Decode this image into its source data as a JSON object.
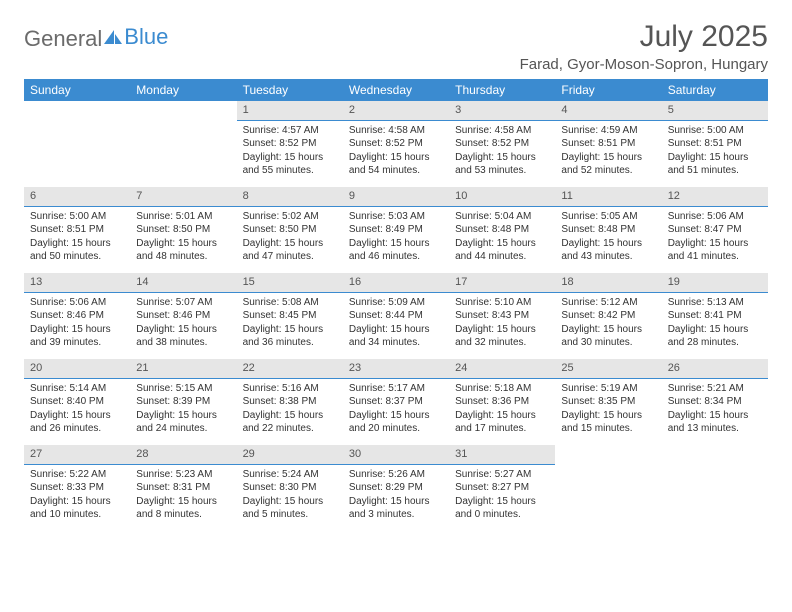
{
  "logo": {
    "text1": "General",
    "text2": "Blue"
  },
  "title": "July 2025",
  "location": "Farad, Gyor-Moson-Sopron, Hungary",
  "colors": {
    "header_bg": "#3b8bd0",
    "header_fg": "#ffffff",
    "daynum_bg": "#e6e6e6",
    "daynum_border": "#3b8bd0",
    "text": "#333333",
    "title_color": "#555555"
  },
  "weekdays": [
    "Sunday",
    "Monday",
    "Tuesday",
    "Wednesday",
    "Thursday",
    "Friday",
    "Saturday"
  ],
  "weeks": [
    [
      {
        "n": "",
        "sunrise": "",
        "sunset": "",
        "daylight": ""
      },
      {
        "n": "",
        "sunrise": "",
        "sunset": "",
        "daylight": ""
      },
      {
        "n": "1",
        "sunrise": "Sunrise: 4:57 AM",
        "sunset": "Sunset: 8:52 PM",
        "daylight": "Daylight: 15 hours and 55 minutes."
      },
      {
        "n": "2",
        "sunrise": "Sunrise: 4:58 AM",
        "sunset": "Sunset: 8:52 PM",
        "daylight": "Daylight: 15 hours and 54 minutes."
      },
      {
        "n": "3",
        "sunrise": "Sunrise: 4:58 AM",
        "sunset": "Sunset: 8:52 PM",
        "daylight": "Daylight: 15 hours and 53 minutes."
      },
      {
        "n": "4",
        "sunrise": "Sunrise: 4:59 AM",
        "sunset": "Sunset: 8:51 PM",
        "daylight": "Daylight: 15 hours and 52 minutes."
      },
      {
        "n": "5",
        "sunrise": "Sunrise: 5:00 AM",
        "sunset": "Sunset: 8:51 PM",
        "daylight": "Daylight: 15 hours and 51 minutes."
      }
    ],
    [
      {
        "n": "6",
        "sunrise": "Sunrise: 5:00 AM",
        "sunset": "Sunset: 8:51 PM",
        "daylight": "Daylight: 15 hours and 50 minutes."
      },
      {
        "n": "7",
        "sunrise": "Sunrise: 5:01 AM",
        "sunset": "Sunset: 8:50 PM",
        "daylight": "Daylight: 15 hours and 48 minutes."
      },
      {
        "n": "8",
        "sunrise": "Sunrise: 5:02 AM",
        "sunset": "Sunset: 8:50 PM",
        "daylight": "Daylight: 15 hours and 47 minutes."
      },
      {
        "n": "9",
        "sunrise": "Sunrise: 5:03 AM",
        "sunset": "Sunset: 8:49 PM",
        "daylight": "Daylight: 15 hours and 46 minutes."
      },
      {
        "n": "10",
        "sunrise": "Sunrise: 5:04 AM",
        "sunset": "Sunset: 8:48 PM",
        "daylight": "Daylight: 15 hours and 44 minutes."
      },
      {
        "n": "11",
        "sunrise": "Sunrise: 5:05 AM",
        "sunset": "Sunset: 8:48 PM",
        "daylight": "Daylight: 15 hours and 43 minutes."
      },
      {
        "n": "12",
        "sunrise": "Sunrise: 5:06 AM",
        "sunset": "Sunset: 8:47 PM",
        "daylight": "Daylight: 15 hours and 41 minutes."
      }
    ],
    [
      {
        "n": "13",
        "sunrise": "Sunrise: 5:06 AM",
        "sunset": "Sunset: 8:46 PM",
        "daylight": "Daylight: 15 hours and 39 minutes."
      },
      {
        "n": "14",
        "sunrise": "Sunrise: 5:07 AM",
        "sunset": "Sunset: 8:46 PM",
        "daylight": "Daylight: 15 hours and 38 minutes."
      },
      {
        "n": "15",
        "sunrise": "Sunrise: 5:08 AM",
        "sunset": "Sunset: 8:45 PM",
        "daylight": "Daylight: 15 hours and 36 minutes."
      },
      {
        "n": "16",
        "sunrise": "Sunrise: 5:09 AM",
        "sunset": "Sunset: 8:44 PM",
        "daylight": "Daylight: 15 hours and 34 minutes."
      },
      {
        "n": "17",
        "sunrise": "Sunrise: 5:10 AM",
        "sunset": "Sunset: 8:43 PM",
        "daylight": "Daylight: 15 hours and 32 minutes."
      },
      {
        "n": "18",
        "sunrise": "Sunrise: 5:12 AM",
        "sunset": "Sunset: 8:42 PM",
        "daylight": "Daylight: 15 hours and 30 minutes."
      },
      {
        "n": "19",
        "sunrise": "Sunrise: 5:13 AM",
        "sunset": "Sunset: 8:41 PM",
        "daylight": "Daylight: 15 hours and 28 minutes."
      }
    ],
    [
      {
        "n": "20",
        "sunrise": "Sunrise: 5:14 AM",
        "sunset": "Sunset: 8:40 PM",
        "daylight": "Daylight: 15 hours and 26 minutes."
      },
      {
        "n": "21",
        "sunrise": "Sunrise: 5:15 AM",
        "sunset": "Sunset: 8:39 PM",
        "daylight": "Daylight: 15 hours and 24 minutes."
      },
      {
        "n": "22",
        "sunrise": "Sunrise: 5:16 AM",
        "sunset": "Sunset: 8:38 PM",
        "daylight": "Daylight: 15 hours and 22 minutes."
      },
      {
        "n": "23",
        "sunrise": "Sunrise: 5:17 AM",
        "sunset": "Sunset: 8:37 PM",
        "daylight": "Daylight: 15 hours and 20 minutes."
      },
      {
        "n": "24",
        "sunrise": "Sunrise: 5:18 AM",
        "sunset": "Sunset: 8:36 PM",
        "daylight": "Daylight: 15 hours and 17 minutes."
      },
      {
        "n": "25",
        "sunrise": "Sunrise: 5:19 AM",
        "sunset": "Sunset: 8:35 PM",
        "daylight": "Daylight: 15 hours and 15 minutes."
      },
      {
        "n": "26",
        "sunrise": "Sunrise: 5:21 AM",
        "sunset": "Sunset: 8:34 PM",
        "daylight": "Daylight: 15 hours and 13 minutes."
      }
    ],
    [
      {
        "n": "27",
        "sunrise": "Sunrise: 5:22 AM",
        "sunset": "Sunset: 8:33 PM",
        "daylight": "Daylight: 15 hours and 10 minutes."
      },
      {
        "n": "28",
        "sunrise": "Sunrise: 5:23 AM",
        "sunset": "Sunset: 8:31 PM",
        "daylight": "Daylight: 15 hours and 8 minutes."
      },
      {
        "n": "29",
        "sunrise": "Sunrise: 5:24 AM",
        "sunset": "Sunset: 8:30 PM",
        "daylight": "Daylight: 15 hours and 5 minutes."
      },
      {
        "n": "30",
        "sunrise": "Sunrise: 5:26 AM",
        "sunset": "Sunset: 8:29 PM",
        "daylight": "Daylight: 15 hours and 3 minutes."
      },
      {
        "n": "31",
        "sunrise": "Sunrise: 5:27 AM",
        "sunset": "Sunset: 8:27 PM",
        "daylight": "Daylight: 15 hours and 0 minutes."
      },
      {
        "n": "",
        "sunrise": "",
        "sunset": "",
        "daylight": ""
      },
      {
        "n": "",
        "sunrise": "",
        "sunset": "",
        "daylight": ""
      }
    ]
  ]
}
